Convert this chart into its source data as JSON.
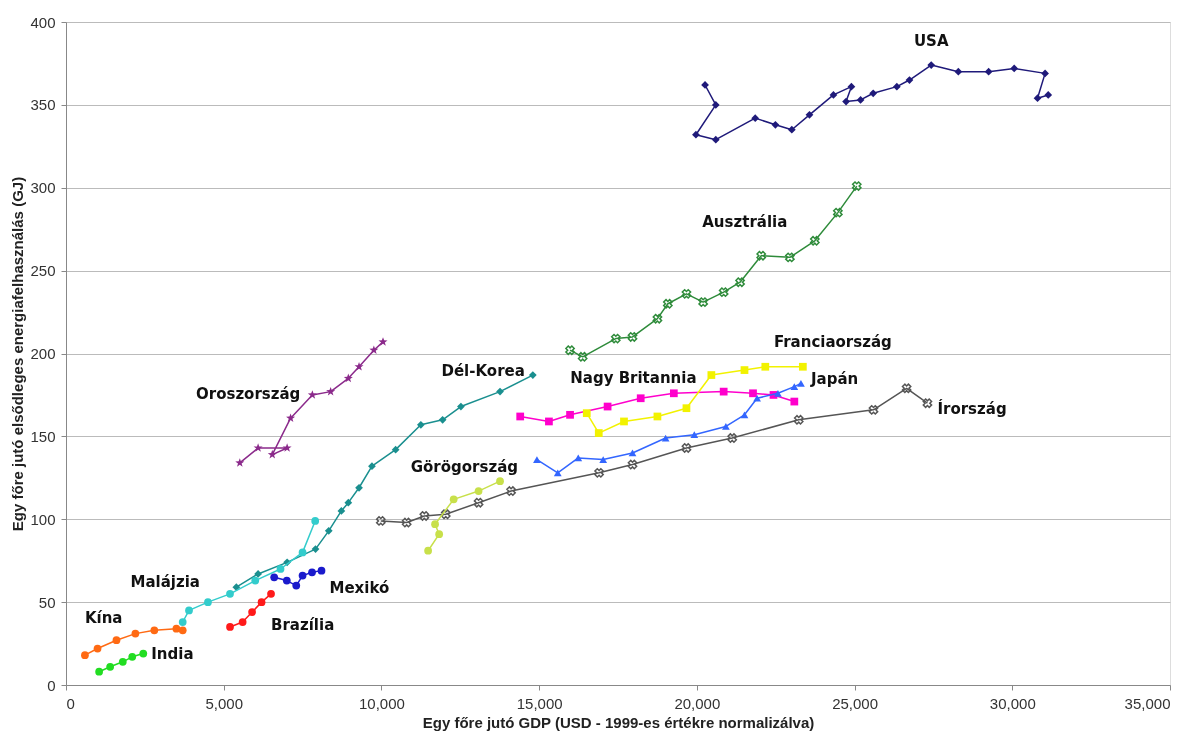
{
  "chart_data": {
    "type": "line",
    "xlabel": "Egy főre jutó GDP (USD - 1999-es értékre normalizálva)",
    "ylabel": "Egy főre jutó elsődleges energiafelhasználás (GJ)",
    "xlim": [
      0,
      35000
    ],
    "xticks": [
      0,
      {
        "value": 5000,
        "label": "5,000"
      },
      {
        "value": 10000,
        "label": "10,000"
      },
      {
        "value": 15000,
        "label": "15,000"
      },
      {
        "value": 20000,
        "label": "20,000"
      },
      {
        "value": 25000,
        "label": "25,000"
      },
      {
        "value": 30000,
        "label": "30,000"
      },
      {
        "value": 35000,
        "label": "35,000"
      }
    ],
    "ylim": [
      0,
      400
    ],
    "yticks": [
      0,
      50,
      100,
      150,
      200,
      250,
      300,
      350,
      400
    ],
    "grid": "y",
    "line_style": "solid",
    "series": [
      {
        "name": "USA",
        "color": "#1f1a7a",
        "marker": "diamond",
        "x": [
          20260,
          20600,
          19970,
          20600,
          21850,
          22490,
          23010,
          23570,
          24330,
          24900,
          24730,
          25190,
          25590,
          26340,
          26740,
          27430,
          28290,
          29250,
          30060,
          31040,
          30800,
          31140
        ],
        "values": [
          362,
          350,
          332,
          329,
          342,
          338,
          335,
          344,
          356,
          361,
          352,
          353,
          357,
          361,
          365,
          374,
          370,
          370,
          372,
          369,
          354,
          356
        ]
      },
      {
        "name": "Ausztrália",
        "color": "#2e8b3a",
        "marker": "cross",
        "x": [
          15980,
          16380,
          17430,
          17960,
          18750,
          19080,
          19670,
          20200,
          20850,
          21370,
          22040,
          22950,
          23740,
          24470,
          25070
        ],
        "values": [
          202,
          198,
          209,
          210,
          221,
          230,
          236,
          231,
          237,
          243,
          259,
          258,
          268,
          285,
          301
        ]
      },
      {
        "name": "Oroszország",
        "color": "#8b2a8b",
        "marker": "star",
        "x": [
          10050,
          9760,
          9290,
          8950,
          8390,
          7810,
          7120,
          6540,
          7010,
          6090,
          5510
        ],
        "values": [
          207,
          202,
          192,
          185,
          177,
          175,
          161,
          139,
          143,
          143,
          134
        ]
      },
      {
        "name": "Dél-Korea",
        "color": "#1a8f8f",
        "marker": "diamond",
        "x": [
          5400,
          6090,
          7010,
          7910,
          8330,
          8730,
          8950,
          9290,
          9700,
          10450,
          11250,
          11940,
          12520,
          13760,
          14800
        ],
        "values": [
          59,
          67,
          74,
          82,
          93,
          105,
          110,
          119,
          132,
          142,
          157,
          160,
          168,
          177,
          187
        ]
      },
      {
        "name": "Nagy Britannia",
        "color": "#ff00cc",
        "marker": "square",
        "x": [
          14400,
          15310,
          15980,
          17170,
          18220,
          19270,
          20850,
          21780,
          22430,
          23090
        ],
        "values": [
          162,
          159,
          163,
          168,
          173,
          176,
          177,
          176,
          175,
          171
        ]
      },
      {
        "name": "Franciaország",
        "color": "#f2f200",
        "marker": "square",
        "x": [
          16510,
          16890,
          17690,
          18750,
          19670,
          20460,
          21510,
          22170,
          23360
        ],
        "values": [
          164,
          152,
          159,
          162,
          167,
          187,
          190,
          192,
          192
        ]
      },
      {
        "name": "Japán",
        "color": "#3366ff",
        "marker": "triangle",
        "x": [
          14930,
          15590,
          16240,
          17030,
          17960,
          19010,
          19920,
          20920,
          21510,
          21910,
          22570,
          23090,
          23300
        ],
        "values": [
          136,
          128,
          137,
          136,
          140,
          149,
          151,
          156,
          163,
          173,
          176,
          180,
          182
        ]
      },
      {
        "name": "Írország",
        "color": "#555555",
        "marker": "cross",
        "x": [
          9980,
          10800,
          11360,
          12040,
          13080,
          14110,
          16900,
          17960,
          19670,
          21120,
          23230,
          25600,
          26650,
          27310
        ],
        "values": [
          99,
          98,
          102,
          103,
          110,
          117,
          128,
          133,
          143,
          149,
          160,
          166,
          179,
          170
        ]
      },
      {
        "name": "Görögország",
        "color": "#c8e04a",
        "marker": "circle",
        "x": [
          11480,
          11830,
          11700,
          12290,
          13080,
          13760
        ],
        "values": [
          81,
          91,
          97,
          112,
          117,
          123
        ]
      },
      {
        "name": "Malájzia",
        "color": "#33cccc",
        "marker": "circle",
        "x": [
          3700,
          3900,
          4500,
          5200,
          6000,
          6800,
          7500,
          7900
        ],
        "values": [
          38,
          45,
          50,
          55,
          63,
          70,
          80,
          99
        ]
      },
      {
        "name": "Mexikó",
        "color": "#1a1acc",
        "marker": "circle",
        "x": [
          6600,
          7000,
          7300,
          7500,
          7800,
          8100
        ],
        "values": [
          65,
          63,
          60,
          66,
          68,
          69
        ]
      },
      {
        "name": "Brazília",
        "color": "#ff1a1a",
        "marker": "circle",
        "x": [
          5200,
          5600,
          5900,
          6200,
          6500
        ],
        "values": [
          35,
          38,
          44,
          50,
          55
        ]
      },
      {
        "name": "Kína",
        "color": "#ff6a13",
        "marker": "circle",
        "x": [
          600,
          1000,
          1600,
          2200,
          2800,
          3500,
          3700
        ],
        "values": [
          18,
          22,
          27,
          31,
          33,
          34,
          33
        ]
      },
      {
        "name": "India",
        "color": "#22dd22",
        "marker": "circle",
        "x": [
          1050,
          1400,
          1800,
          2100,
          2450
        ],
        "values": [
          8,
          11,
          14,
          17,
          19
        ]
      }
    ]
  }
}
